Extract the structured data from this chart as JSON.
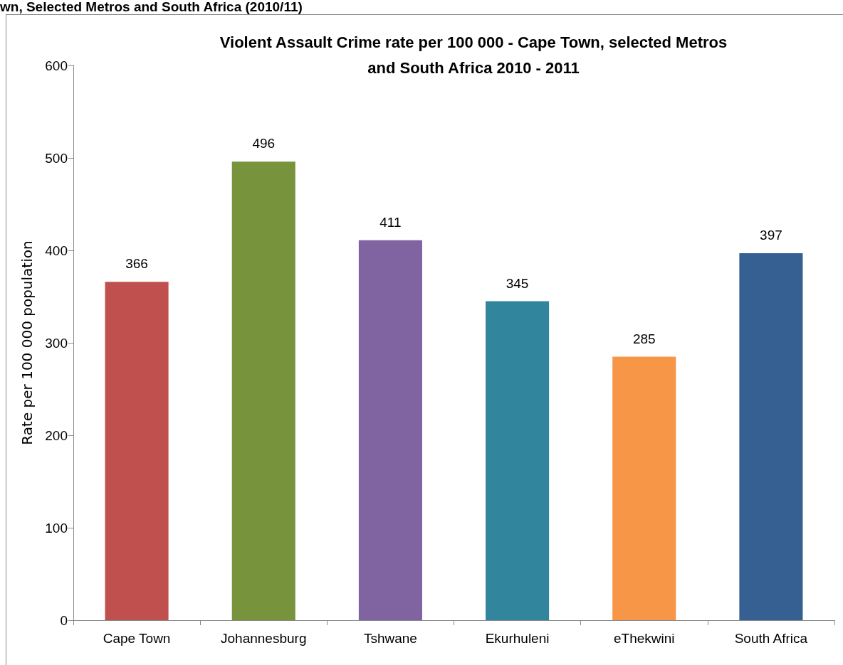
{
  "chart_data": {
    "type": "bar",
    "title": "Violent Assault Crime rate per 100 000 - Cape Town, selected Metros\nand South Africa 2010 - 2011",
    "annotations": [
      "wn, Selected Metros and South Africa (2010/11)"
    ],
    "ylabel": "Rate per 100 000 population",
    "categories": [
      "Cape Town",
      "Johannesburg",
      "Tshwane",
      "Ekurhuleni",
      "eThekwini",
      "South Africa"
    ],
    "values": [
      366,
      496,
      411,
      345,
      285,
      397
    ],
    "colors": [
      "#c0504d",
      "#77933c",
      "#8064a2",
      "#31859c",
      "#f79646",
      "#366092"
    ],
    "ylim": [
      0,
      600
    ],
    "yticks": [
      0,
      100,
      200,
      300,
      400,
      500,
      600
    ],
    "data_labels": true,
    "grid": false
  }
}
